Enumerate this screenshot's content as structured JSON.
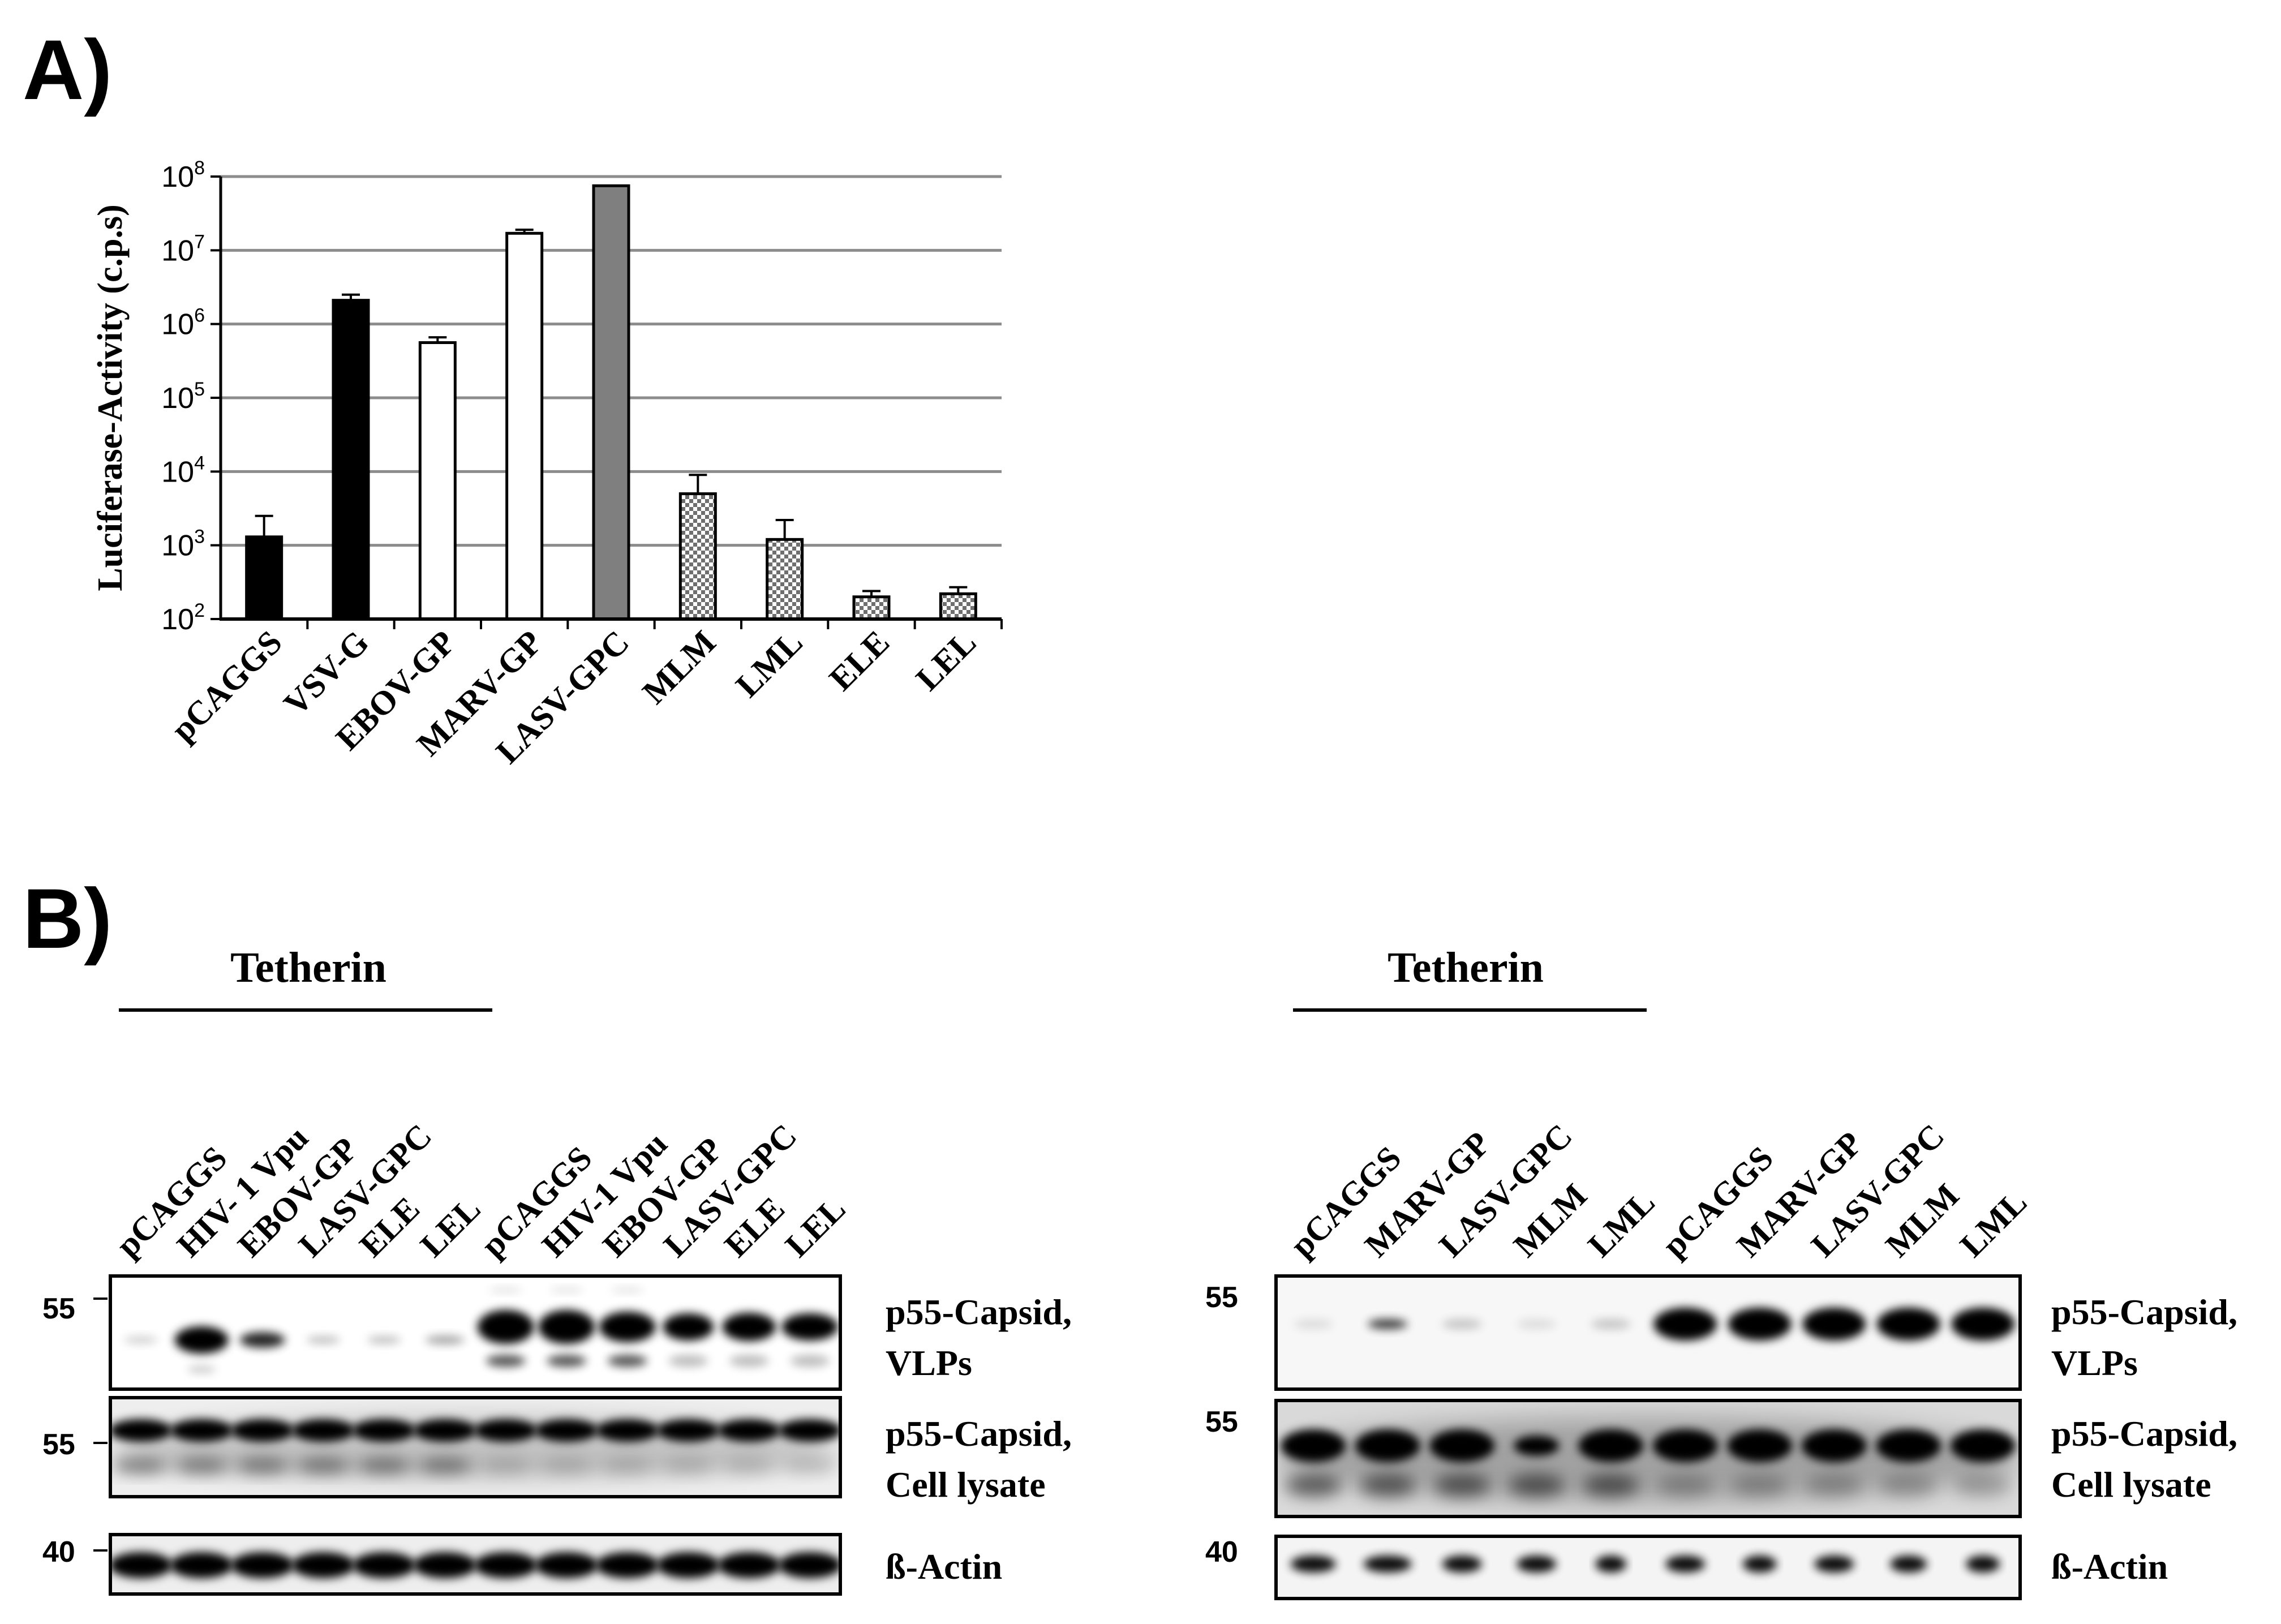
{
  "panel_a": {
    "label": "A)"
  },
  "panel_b": {
    "label": "B)"
  },
  "chart_data": {
    "type": "bar",
    "title": "",
    "xlabel": "",
    "ylabel": "Luciferase-Activity (c.p.s)",
    "yscale": "log",
    "ylim": [
      100,
      100000000
    ],
    "yticks": [
      {
        "base": "10",
        "exp": "2",
        "value": 100
      },
      {
        "base": "10",
        "exp": "3",
        "value": 1000
      },
      {
        "base": "10",
        "exp": "4",
        "value": 10000
      },
      {
        "base": "10",
        "exp": "5",
        "value": 100000
      },
      {
        "base": "10",
        "exp": "6",
        "value": 1000000
      },
      {
        "base": "10",
        "exp": "7",
        "value": 10000000
      },
      {
        "base": "10",
        "exp": "8",
        "value": 100000000
      }
    ],
    "grid": true,
    "categories": [
      "pCAGGS",
      "VSV-G",
      "EBOV-GP",
      "MARV-GP",
      "LASV-GPC",
      "MLM",
      "LML",
      "ELE",
      "LEL"
    ],
    "values": [
      1300,
      2100000,
      560000,
      17000000,
      75000000,
      5000,
      1200,
      200,
      220
    ],
    "errors": [
      1200,
      400000,
      100000,
      2000000,
      0,
      4000,
      1000,
      40,
      50
    ],
    "bar_fills": [
      "black",
      "black",
      "white",
      "white",
      "#7f7f7f",
      "checker",
      "checker",
      "checker",
      "checker"
    ]
  },
  "blot_left": {
    "header": "Tetherin",
    "lanes": [
      "pCAGGS",
      "HIV- 1 Vpu",
      "EBOV-GP",
      "LASV-GPC",
      "ELE",
      "LEL",
      "pCAGGS",
      "HIV-1 Vpu",
      "EBOV-GP",
      "LASV-GPC",
      "ELE",
      "LEL"
    ],
    "markers": {
      "top": "55",
      "middle": "55",
      "bottom": "40"
    }
  },
  "blot_right": {
    "header": "Tetherin",
    "lanes": [
      "pCAGGS",
      "MARV-GP",
      "LASV-GPC",
      "MLM",
      "LML",
      "pCAGGS",
      "MARV-GP",
      "LASV-GPC",
      "MLM",
      "LML"
    ],
    "markers": {
      "top": "55",
      "middle": "55",
      "bottom": "40"
    }
  },
  "band_labels": {
    "vlp_line1": "p55-Capsid,",
    "vlp_line2": "VLPs",
    "lysate_line1": "p55-Capsid,",
    "lysate_line2": "Cell lysate",
    "actin": "ß-Actin"
  },
  "colors": {
    "bar_dark": "#000000",
    "bar_gray": "#7f7f7f",
    "grid": "#8c8c8c",
    "band": "#000000"
  }
}
